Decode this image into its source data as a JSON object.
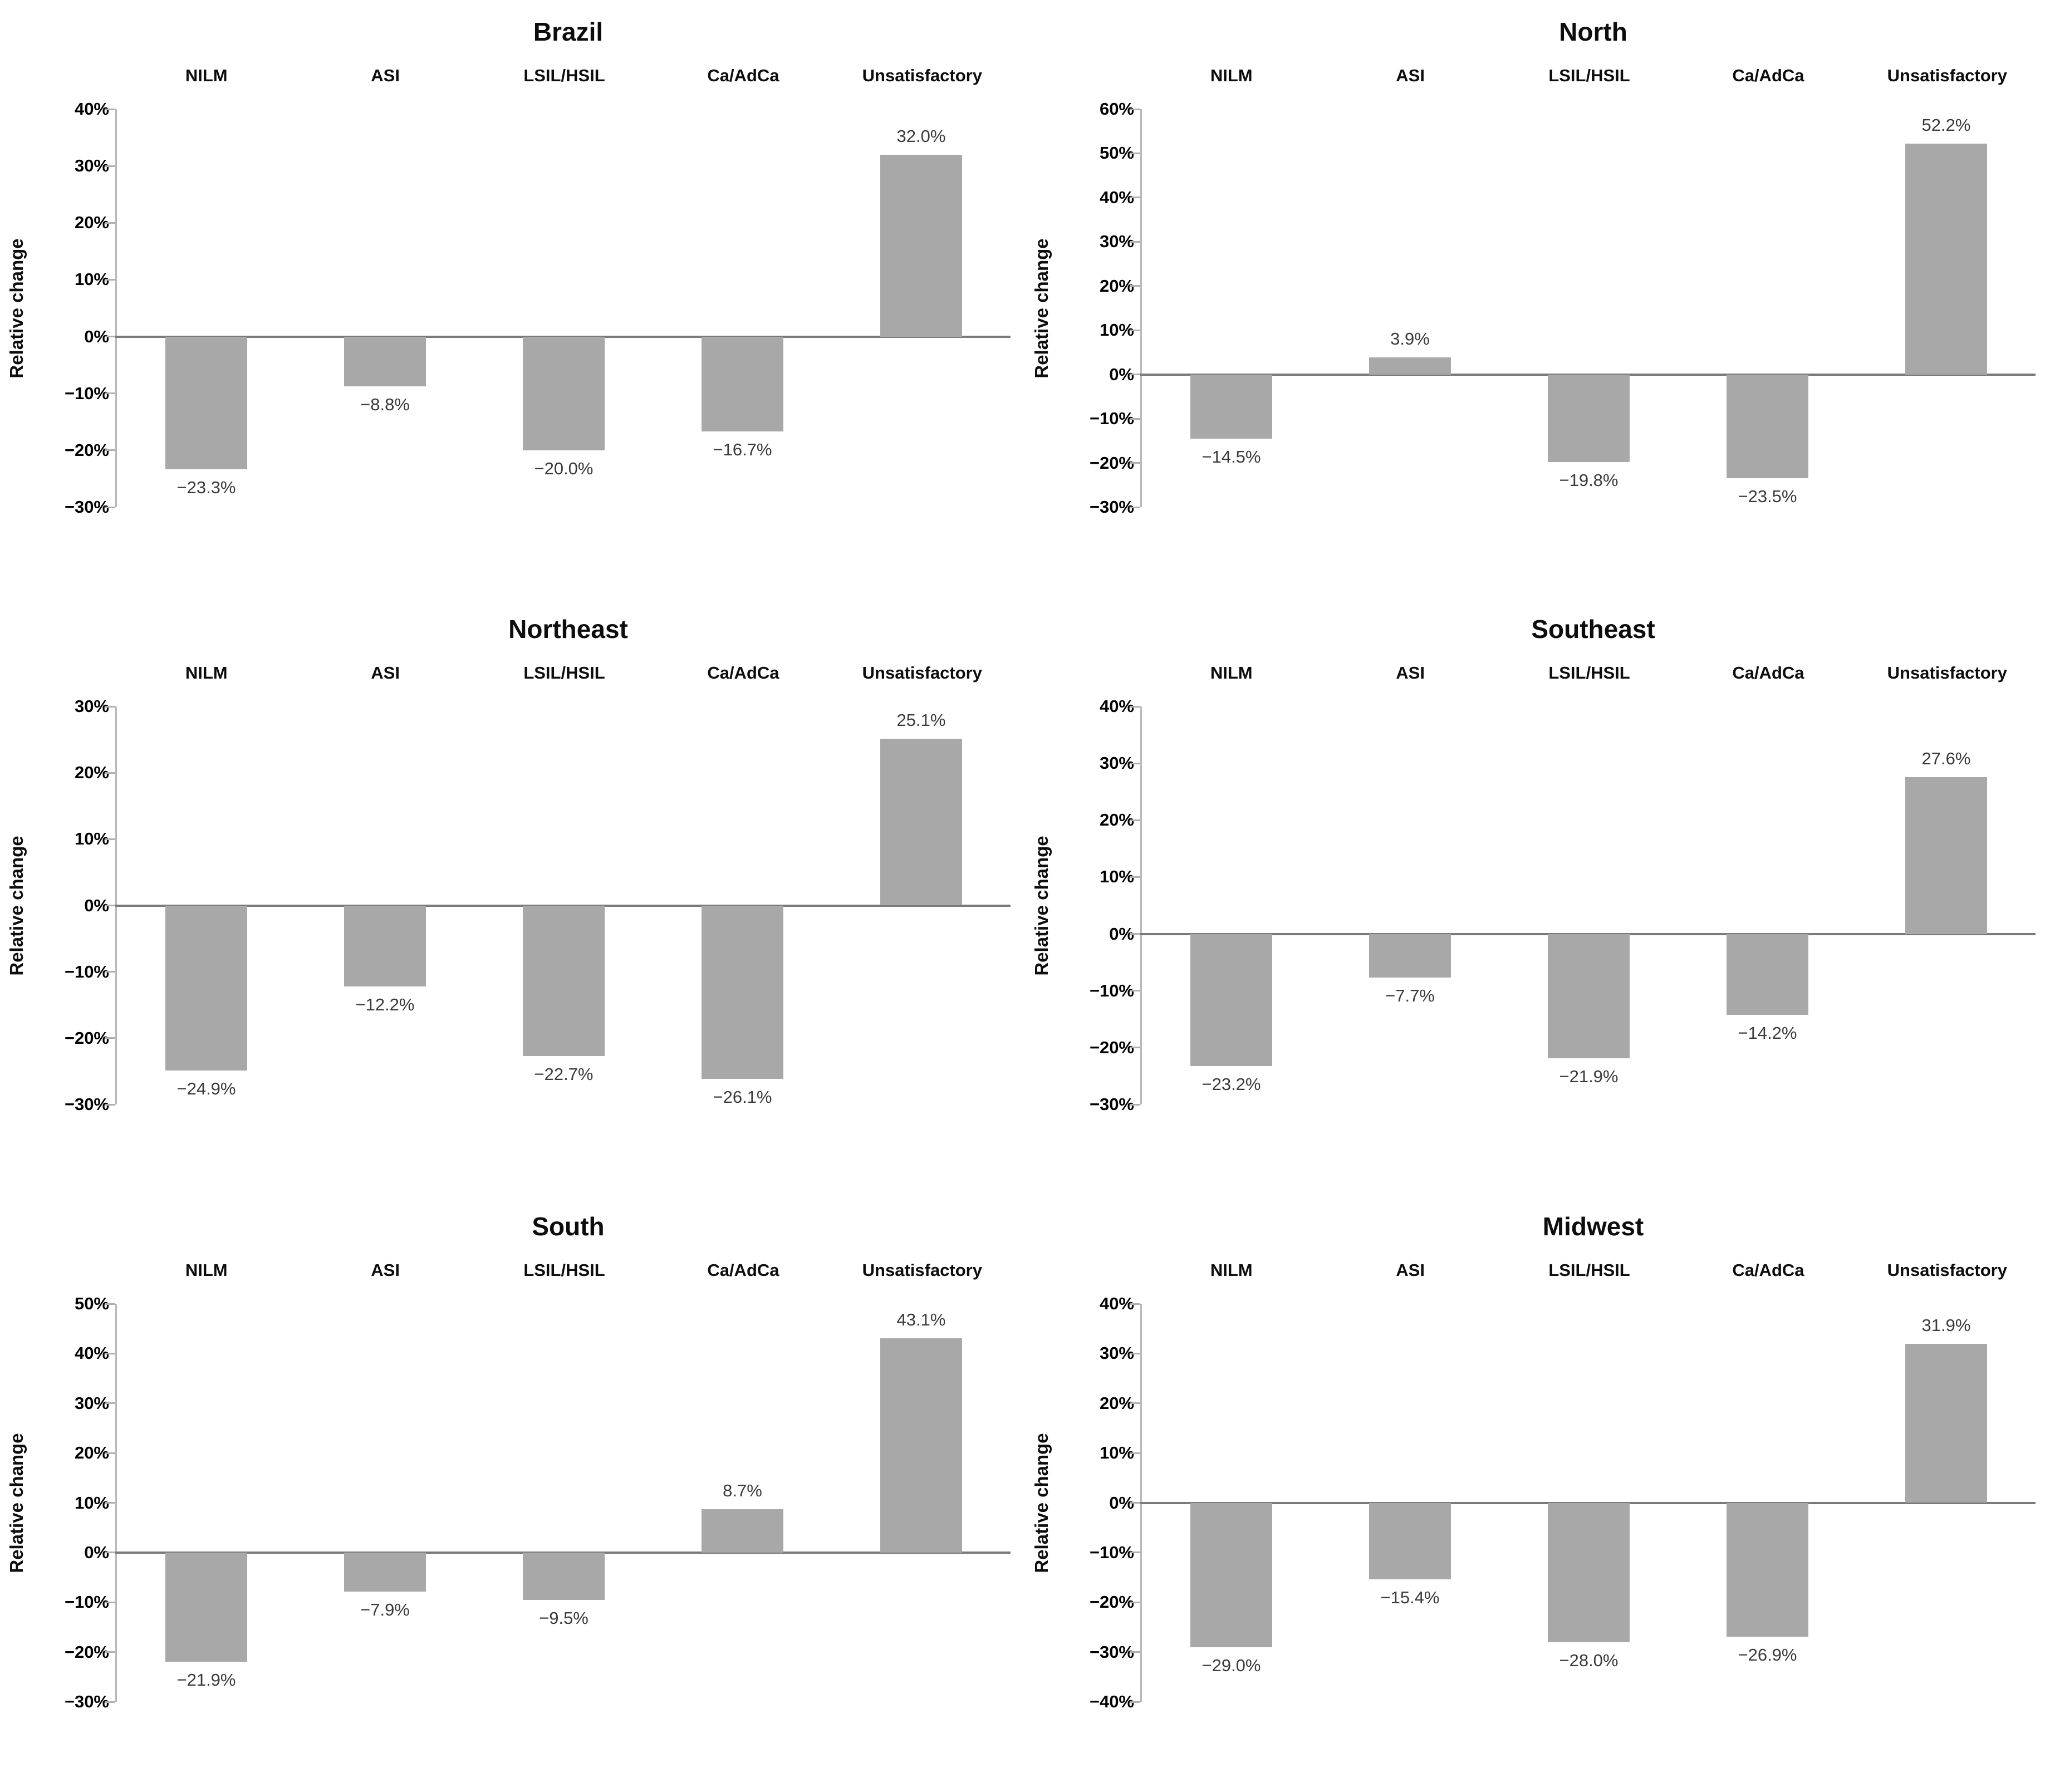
{
  "figure": {
    "ylabel": "Relative change",
    "categories": [
      "NILM",
      "ASI",
      "LSIL/HSIL",
      "Ca/AdCa",
      "Unsatisfactory"
    ],
    "colors": {
      "bar": "#a8a8a8",
      "axis": "#b8b8b8",
      "tick": "#b0b0b0",
      "zero_line": "#7a7a7a",
      "tick_label": "#000000",
      "value_label": "#3a3a3a"
    }
  },
  "chart_data": [
    {
      "type": "bar",
      "title": "Brazil",
      "ylabel": "Relative change",
      "categories": [
        "NILM",
        "ASI",
        "LSIL/HSIL",
        "Ca/AdCa",
        "Unsatisfactory"
      ],
      "values": [
        -23.3,
        -8.8,
        -20.0,
        -16.7,
        32.0
      ],
      "value_labels": [
        "−23.3%",
        "−8.8%",
        "−20.0%",
        "−16.7%",
        "32.0%"
      ],
      "ylim": [
        -30,
        40
      ],
      "ytick_step": 10,
      "grid": false,
      "legend": false
    },
    {
      "type": "bar",
      "title": "North",
      "ylabel": "Relative change",
      "categories": [
        "NILM",
        "ASI",
        "LSIL/HSIL",
        "Ca/AdCa",
        "Unsatisfactory"
      ],
      "values": [
        -14.5,
        3.9,
        -19.8,
        -23.5,
        52.2
      ],
      "value_labels": [
        "−14.5%",
        "3.9%",
        "−19.8%",
        "−23.5%",
        "52.2%"
      ],
      "ylim": [
        -30,
        60
      ],
      "ytick_step": 10,
      "grid": false,
      "legend": false
    },
    {
      "type": "bar",
      "title": "Northeast",
      "ylabel": "Relative change",
      "categories": [
        "NILM",
        "ASI",
        "LSIL/HSIL",
        "Ca/AdCa",
        "Unsatisfactory"
      ],
      "values": [
        -24.9,
        -12.2,
        -22.7,
        -26.1,
        25.1
      ],
      "value_labels": [
        "−24.9%",
        "−12.2%",
        "−22.7%",
        "−26.1%",
        "25.1%"
      ],
      "ylim": [
        -30,
        30
      ],
      "ytick_step": 10,
      "grid": false,
      "legend": false
    },
    {
      "type": "bar",
      "title": "Southeast",
      "ylabel": "Relative change",
      "categories": [
        "NILM",
        "ASI",
        "LSIL/HSIL",
        "Ca/AdCa",
        "Unsatisfactory"
      ],
      "values": [
        -23.2,
        -7.7,
        -21.9,
        -14.2,
        27.6
      ],
      "value_labels": [
        "−23.2%",
        "−7.7%",
        "−21.9%",
        "−14.2%",
        "27.6%"
      ],
      "ylim": [
        -30,
        40
      ],
      "ytick_step": 10,
      "grid": false,
      "legend": false
    },
    {
      "type": "bar",
      "title": "South",
      "ylabel": "Relative change",
      "categories": [
        "NILM",
        "ASI",
        "LSIL/HSIL",
        "Ca/AdCa",
        "Unsatisfactory"
      ],
      "values": [
        -21.9,
        -7.9,
        -9.5,
        8.7,
        43.1
      ],
      "value_labels": [
        "−21.9%",
        "−7.9%",
        "−9.5%",
        "8.7%",
        "43.1%"
      ],
      "ylim": [
        -30,
        50
      ],
      "ytick_step": 10,
      "grid": false,
      "legend": false
    },
    {
      "type": "bar",
      "title": "Midwest",
      "ylabel": "Relative change",
      "categories": [
        "NILM",
        "ASI",
        "LSIL/HSIL",
        "Ca/AdCa",
        "Unsatisfactory"
      ],
      "values": [
        -29.0,
        -15.4,
        -28.0,
        -26.9,
        31.9
      ],
      "value_labels": [
        "−29.0%",
        "−15.4%",
        "−28.0%",
        "−26.9%",
        "31.9%"
      ],
      "ylim": [
        -40,
        40
      ],
      "ytick_step": 10,
      "grid": false,
      "legend": false
    }
  ]
}
